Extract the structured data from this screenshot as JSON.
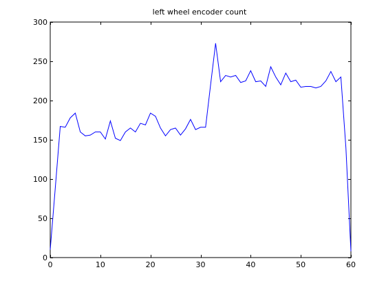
{
  "chart_data": {
    "type": "line",
    "title": "left wheel encoder count",
    "xlabel": "",
    "ylabel": "",
    "xlim": [
      0,
      60
    ],
    "ylim": [
      0,
      300
    ],
    "xticks": [
      0,
      10,
      20,
      30,
      40,
      50,
      60
    ],
    "yticks": [
      0,
      50,
      100,
      150,
      200,
      250,
      300
    ],
    "grid": false,
    "line_color": "#0000ff",
    "series": [
      {
        "x": [
          0,
          1,
          2,
          3,
          4,
          5,
          6,
          7,
          8,
          9,
          10,
          11,
          12,
          13,
          14,
          15,
          16,
          17,
          18,
          19,
          20,
          21,
          22,
          23,
          24,
          25,
          26,
          27,
          28,
          29,
          30,
          31,
          32,
          33,
          34,
          35,
          36,
          37,
          38,
          39,
          40,
          41,
          42,
          43,
          44,
          45,
          46,
          47,
          48,
          49,
          50,
          51,
          52,
          53,
          54,
          55,
          56,
          57,
          58,
          59,
          60
        ],
        "values": [
          10,
          88,
          167,
          166,
          178,
          184,
          160,
          155,
          156,
          160,
          160,
          151,
          174,
          152,
          149,
          160,
          165,
          160,
          171,
          169,
          184,
          180,
          165,
          155,
          163,
          165,
          156,
          164,
          176,
          163,
          166,
          166,
          220,
          273,
          224,
          232,
          230,
          232,
          223,
          225,
          238,
          224,
          225,
          218,
          243,
          230,
          220,
          235,
          224,
          226,
          217,
          218,
          218,
          216,
          218,
          225,
          237,
          224,
          230,
          140,
          8
        ]
      }
    ]
  }
}
